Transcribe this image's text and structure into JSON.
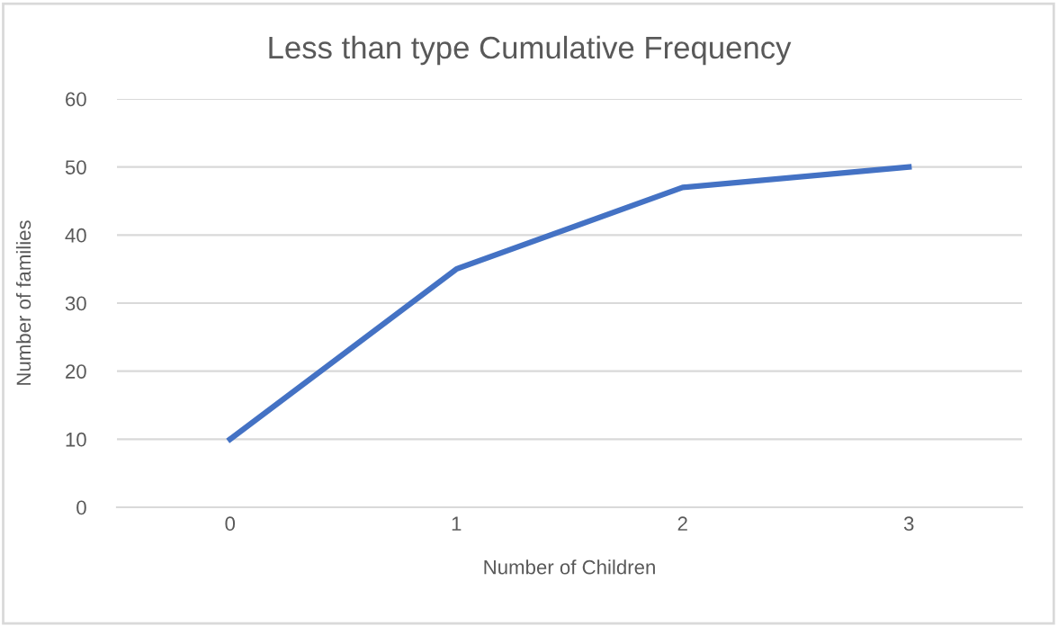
{
  "chart_data": {
    "type": "line",
    "title": "Less than type Cumulative Frequency",
    "xlabel": "Number of Children",
    "ylabel": "Number of families",
    "categories": [
      "0",
      "1",
      "2",
      "3"
    ],
    "series": [
      {
        "color": "#4472c4",
        "values": [
          10,
          35,
          47,
          50
        ]
      }
    ],
    "ylim": [
      0,
      60
    ],
    "yticks": [
      0,
      10,
      20,
      30,
      40,
      50,
      60
    ],
    "grid": "y",
    "marker": "none",
    "line_style": "solid"
  }
}
